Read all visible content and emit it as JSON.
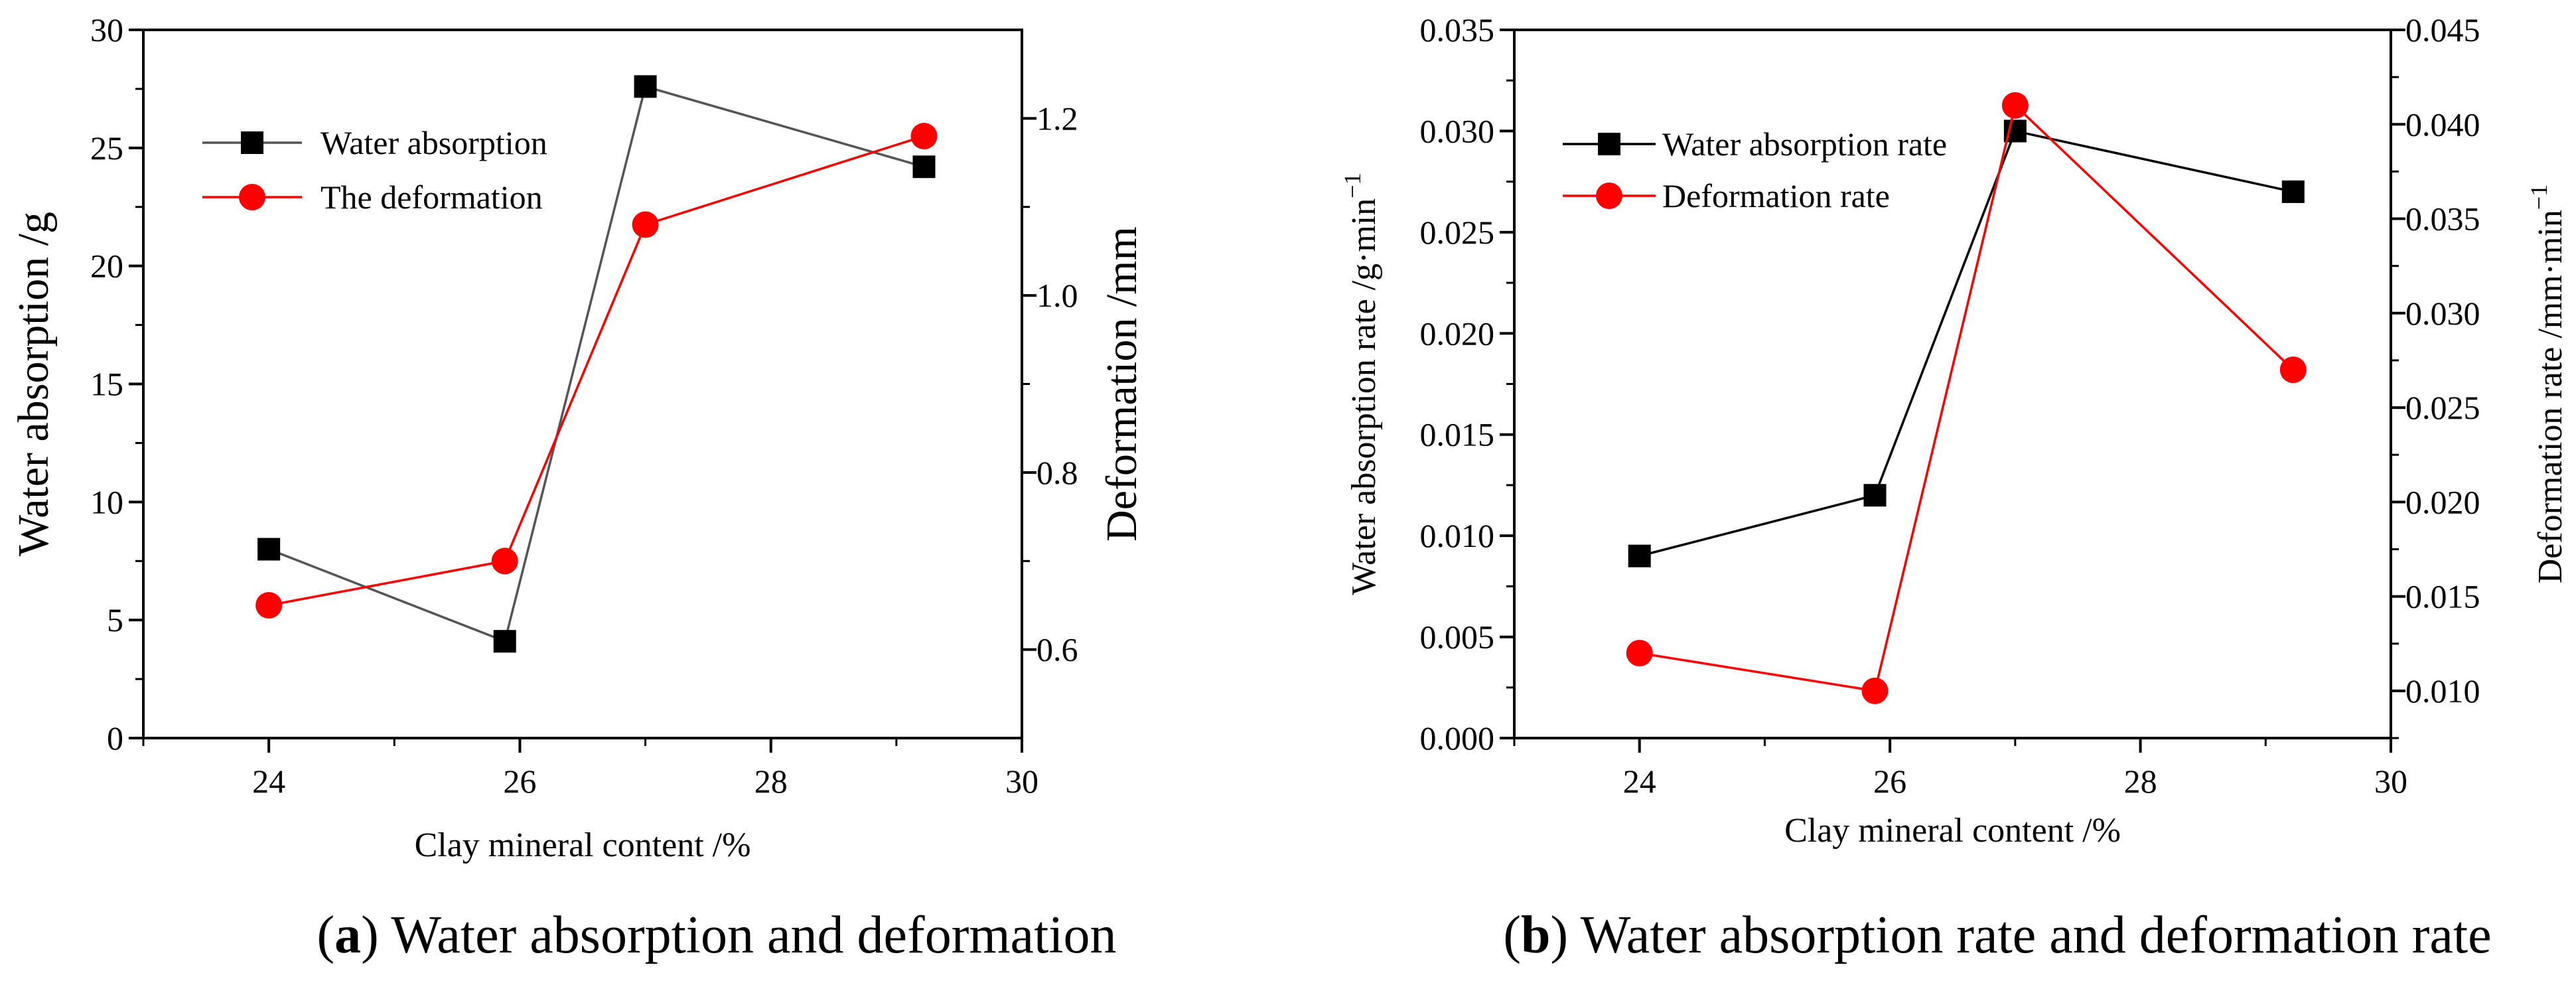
{
  "chart_data": [
    {
      "type": "line",
      "panel": "a",
      "caption_letter": "a",
      "caption_text": "Water absorption and deformation",
      "x": [
        24.0,
        25.88,
        27.0,
        29.22
      ],
      "xlabel": "Clay mineral content /%",
      "xlim": [
        23,
        30
      ],
      "xticks": [
        24,
        26,
        28,
        30
      ],
      "ylabel_left": "Water absorption  /g",
      "ylim_left": [
        0,
        30
      ],
      "yticks_left": [
        0,
        5,
        10,
        15,
        20,
        25,
        30
      ],
      "ylabel_right": "Deformation  /mm",
      "ylim_right": [
        0.5,
        1.3
      ],
      "yticks_right": [
        "0.6",
        "0.8",
        "1.0",
        "1.2"
      ],
      "legend_position": "top-left",
      "series": [
        {
          "name": "Water absorption",
          "axis": "left",
          "marker": "square",
          "color": "#000000",
          "line_color": "#555555",
          "values": [
            8.0,
            4.1,
            27.6,
            24.2
          ]
        },
        {
          "name": "The deformation",
          "axis": "right",
          "marker": "circle",
          "color": "#ff0000",
          "line_color": "#ff0000",
          "values": [
            0.65,
            0.7,
            1.08,
            1.18
          ]
        }
      ]
    },
    {
      "type": "line",
      "panel": "b",
      "caption_letter": "b",
      "caption_text": "Water absorption rate and deformation rate",
      "x": [
        24.0,
        25.88,
        27.0,
        29.22
      ],
      "xlabel": "Clay mineral content /%",
      "xlim": [
        23,
        30
      ],
      "xticks": [
        24,
        26,
        28,
        30
      ],
      "ylabel_left": "Water absorption rate /g·min",
      "ylabel_left_sup": "−1",
      "ylim_left": [
        0,
        0.035
      ],
      "yticks_left": [
        "0.000",
        "0.005",
        "0.010",
        "0.015",
        "0.020",
        "0.025",
        "0.030",
        "0.035"
      ],
      "ylabel_right": "Deformation rate /mm·min",
      "ylabel_right_sup": "−1",
      "ylim_right": [
        0.0075,
        0.045
      ],
      "yticks_right": [
        "0.010",
        "0.015",
        "0.020",
        "0.025",
        "0.030",
        "0.035",
        "0.040",
        "0.045"
      ],
      "legend_position": "top-left",
      "series": [
        {
          "name": "Water absorption rate",
          "axis": "left",
          "marker": "square",
          "color": "#000000",
          "line_color": "#000000",
          "values": [
            0.009,
            0.012,
            0.03,
            0.027
          ]
        },
        {
          "name": "Deformation rate",
          "axis": "right",
          "marker": "circle",
          "color": "#ff0000",
          "line_color": "#ff0000",
          "values": [
            0.012,
            0.01,
            0.041,
            0.027
          ]
        }
      ]
    }
  ]
}
